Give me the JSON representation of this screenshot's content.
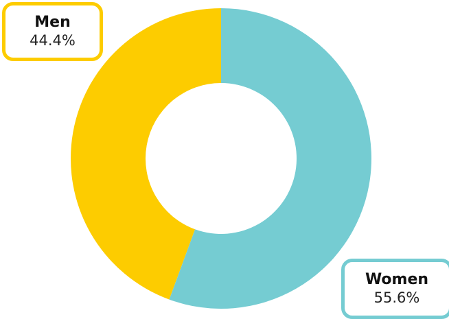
{
  "chart_data": {
    "type": "pie",
    "donut": true,
    "categories": [
      "Men",
      "Women"
    ],
    "values": [
      44.4,
      55.6
    ],
    "value_labels": [
      "44.4%",
      "55.6%"
    ],
    "colors": [
      "#FDCC00",
      "#75CCD2"
    ],
    "start_angle": "top",
    "legend": "none"
  },
  "labels": {
    "men": {
      "name": "Men",
      "value": "44.4%"
    },
    "women": {
      "name": "Women",
      "value": "55.6%"
    }
  }
}
